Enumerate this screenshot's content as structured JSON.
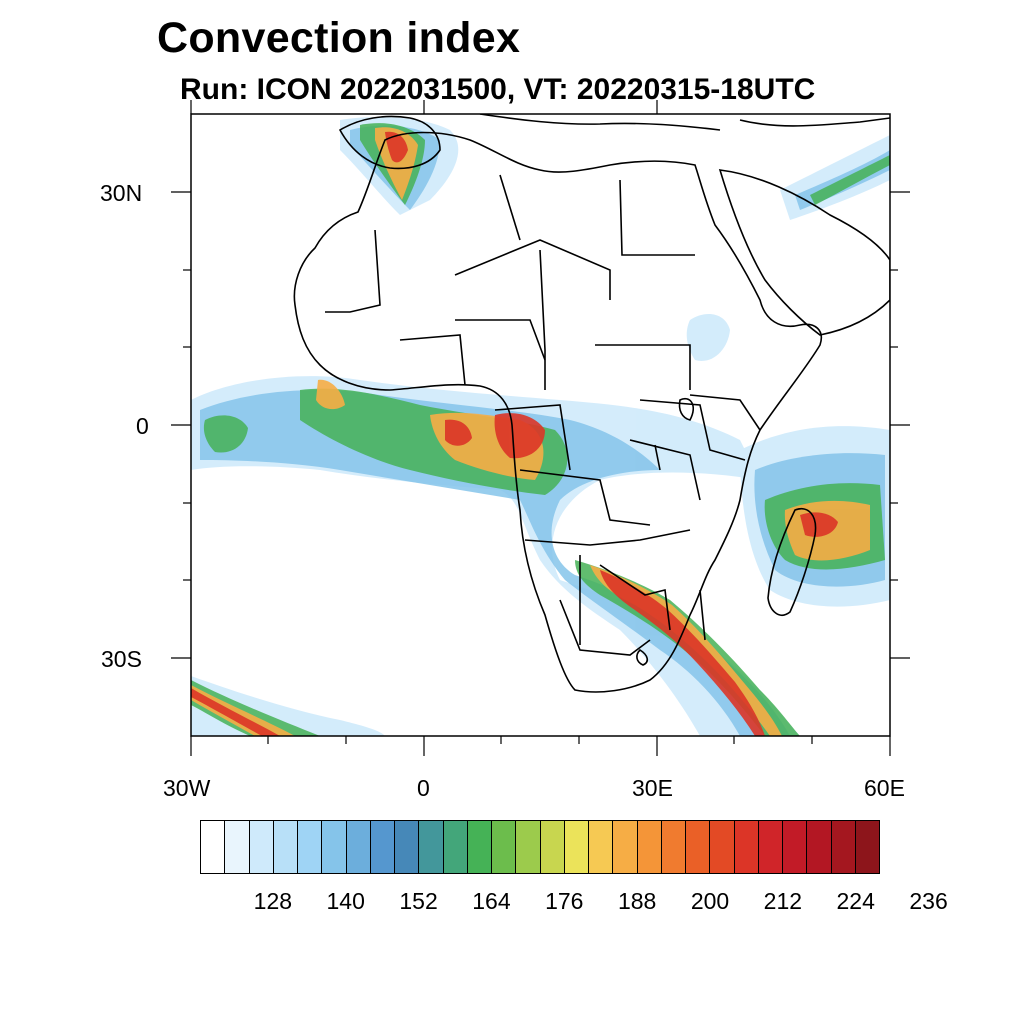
{
  "header": {
    "title": "Convection index",
    "subtitle": "Run: ICON 2022031500,  VT: 20220315-18UTC"
  },
  "axes": {
    "lat_labels": [
      "30N",
      "0",
      "30S"
    ],
    "lon_labels": [
      "30W",
      "0",
      "30E",
      "60E"
    ],
    "lon_range": [
      -30,
      60
    ],
    "lat_range": [
      -40,
      40
    ]
  },
  "colorbar": {
    "colors": [
      "#ffffff",
      "#e9f5fd",
      "#cfeafb",
      "#b8e0f8",
      "#9fd4f5",
      "#85c4ea",
      "#6caedc",
      "#5597cf",
      "#4688b8",
      "#43979b",
      "#43a67a",
      "#45b256",
      "#6cbd4c",
      "#9ccb4c",
      "#c8d64f",
      "#ebe35a",
      "#f6c953",
      "#f6ad45",
      "#f49538",
      "#f07b2f",
      "#ea6027",
      "#e34a25",
      "#dc3527",
      "#d02529",
      "#c21b27",
      "#b31723",
      "#a4171f",
      "#8d151b"
    ],
    "tick_labels": [
      "128",
      "140",
      "152",
      "164",
      "176",
      "188",
      "200",
      "212",
      "224",
      "236"
    ]
  },
  "map": {
    "projection": "cylindrical-equidistant",
    "field": "convection index"
  }
}
